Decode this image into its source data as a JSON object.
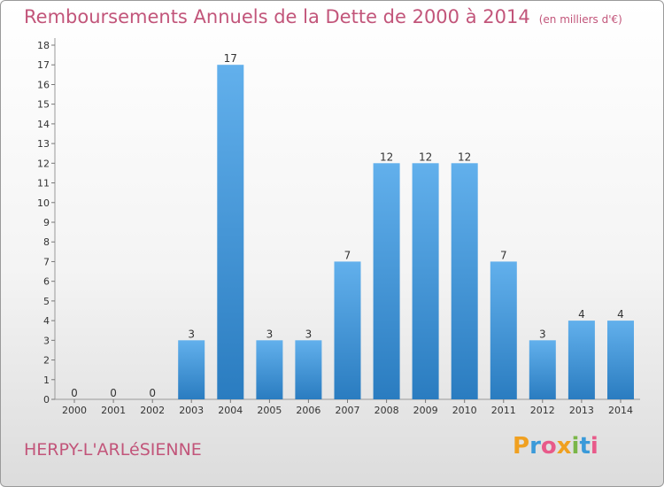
{
  "header": {
    "title": "Remboursements Annuels de la Dette de 2000 à 2014",
    "unit": "(en milliers d'€)"
  },
  "footer": {
    "city": "HERPY-L'ARLéSIENNE",
    "logo_letters": [
      "P",
      "r",
      "o",
      "x",
      "i",
      "t",
      "i"
    ]
  },
  "colors": {
    "title": "#c2557a",
    "bar_top": "#62b0ec",
    "bar_bottom": "#2a7cc0"
  },
  "chart_data": {
    "type": "bar",
    "categories": [
      "2000",
      "2001",
      "2002",
      "2003",
      "2004",
      "2005",
      "2006",
      "2007",
      "2008",
      "2009",
      "2010",
      "2011",
      "2012",
      "2013",
      "2014"
    ],
    "values": [
      0,
      0,
      0,
      3,
      17,
      3,
      3,
      7,
      12,
      12,
      12,
      7,
      3,
      4,
      4
    ],
    "title": "Remboursements Annuels de la Dette de 2000 à 2014",
    "xlabel": "",
    "ylabel": "",
    "ylim": [
      0,
      18
    ],
    "yticks": [
      0,
      1,
      2,
      3,
      4,
      5,
      6,
      7,
      8,
      9,
      10,
      11,
      12,
      13,
      14,
      15,
      16,
      17,
      18
    ],
    "grid": false,
    "legend": "none"
  }
}
